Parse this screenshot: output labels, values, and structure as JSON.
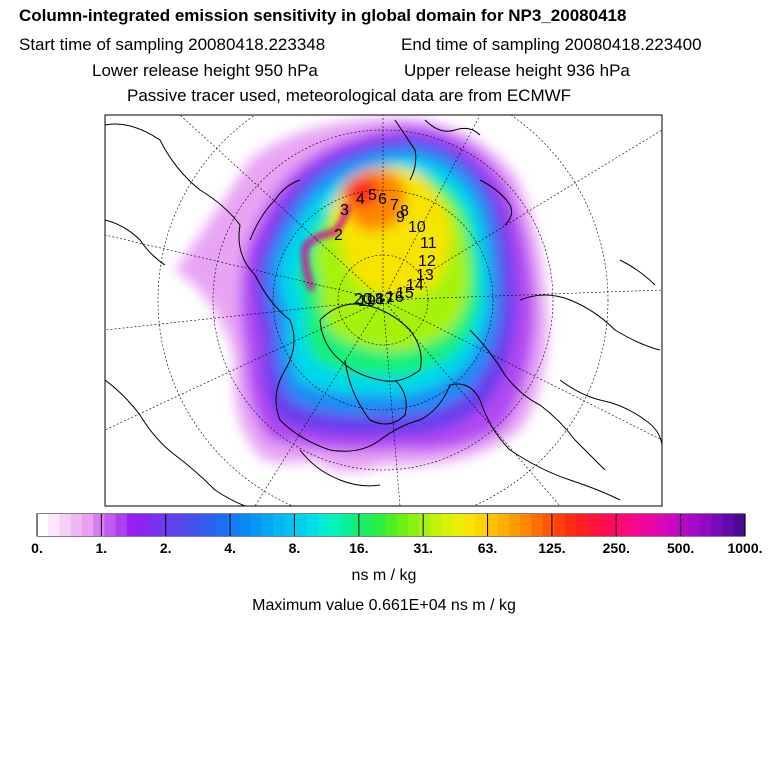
{
  "header": {
    "title": "Column-integrated emission sensitivity in global domain for NP3_20080418",
    "start_time": "Start time of sampling 20080418.223348",
    "end_time": "End time of sampling 20080418.223400",
    "lower_release": "Lower release height  950 hPa",
    "upper_release": "Upper release height  936 hPa",
    "tracer_info": "Passive tracer used, meteorological data are from ECMWF"
  },
  "colorbar": {
    "labels": [
      "0.",
      "1.",
      "2.",
      "4.",
      "8.",
      "16.",
      "31.",
      "63.",
      "125.",
      "250.",
      "500.",
      "1000."
    ],
    "colors": [
      "#ffffff",
      "#fbe7fb",
      "#f5cff5",
      "#efb7f3",
      "#e9a0f1",
      "#d57cf3",
      "#c05cf3",
      "#ad3ff3",
      "#9a1ff3",
      "#8b25f0",
      "#7c31ee",
      "#6c3bed",
      "#5c45ec",
      "#4b4ee9",
      "#3b58ec",
      "#2a63ef",
      "#1e6ef2",
      "#137cf5",
      "#0a8af7",
      "#0698f8",
      "#04a6f8",
      "#04b4f6",
      "#03c2f3",
      "#02d0ef",
      "#02dee7",
      "#03ecd8",
      "#07f2b9",
      "#0df099",
      "#14ef7a",
      "#1fee5a",
      "#2fee3e",
      "#4aef25",
      "#6af015",
      "#8bf110",
      "#a6f20c",
      "#c0f308",
      "#d8f305",
      "#ebf003",
      "#f7e402",
      "#fbd401",
      "#fcc201",
      "#fdb001",
      "#fd9c01",
      "#fe8601",
      "#fe6f02",
      "#fe5804",
      "#fe4109",
      "#fe2d12",
      "#fe1f22",
      "#fe1537",
      "#fe0e4e",
      "#fe0a66",
      "#fb087c",
      "#f40791",
      "#ea07a3",
      "#dc07b3",
      "#cb07bf",
      "#b808c6",
      "#a409c8",
      "#8e0ac4",
      "#770bb9",
      "#600ba9",
      "#4a0a92"
    ],
    "units": "ns m / kg",
    "max_value": "Maximum value  0.661E+04 ns m / kg"
  },
  "map": {
    "projection": "polar-stereographic",
    "track_labels": [
      "2",
      "3",
      "4",
      "5",
      "6",
      "7",
      "8",
      "9",
      "10",
      "11",
      "12",
      "13",
      "14",
      "15",
      "16",
      "17",
      "18",
      "19",
      "20"
    ]
  }
}
